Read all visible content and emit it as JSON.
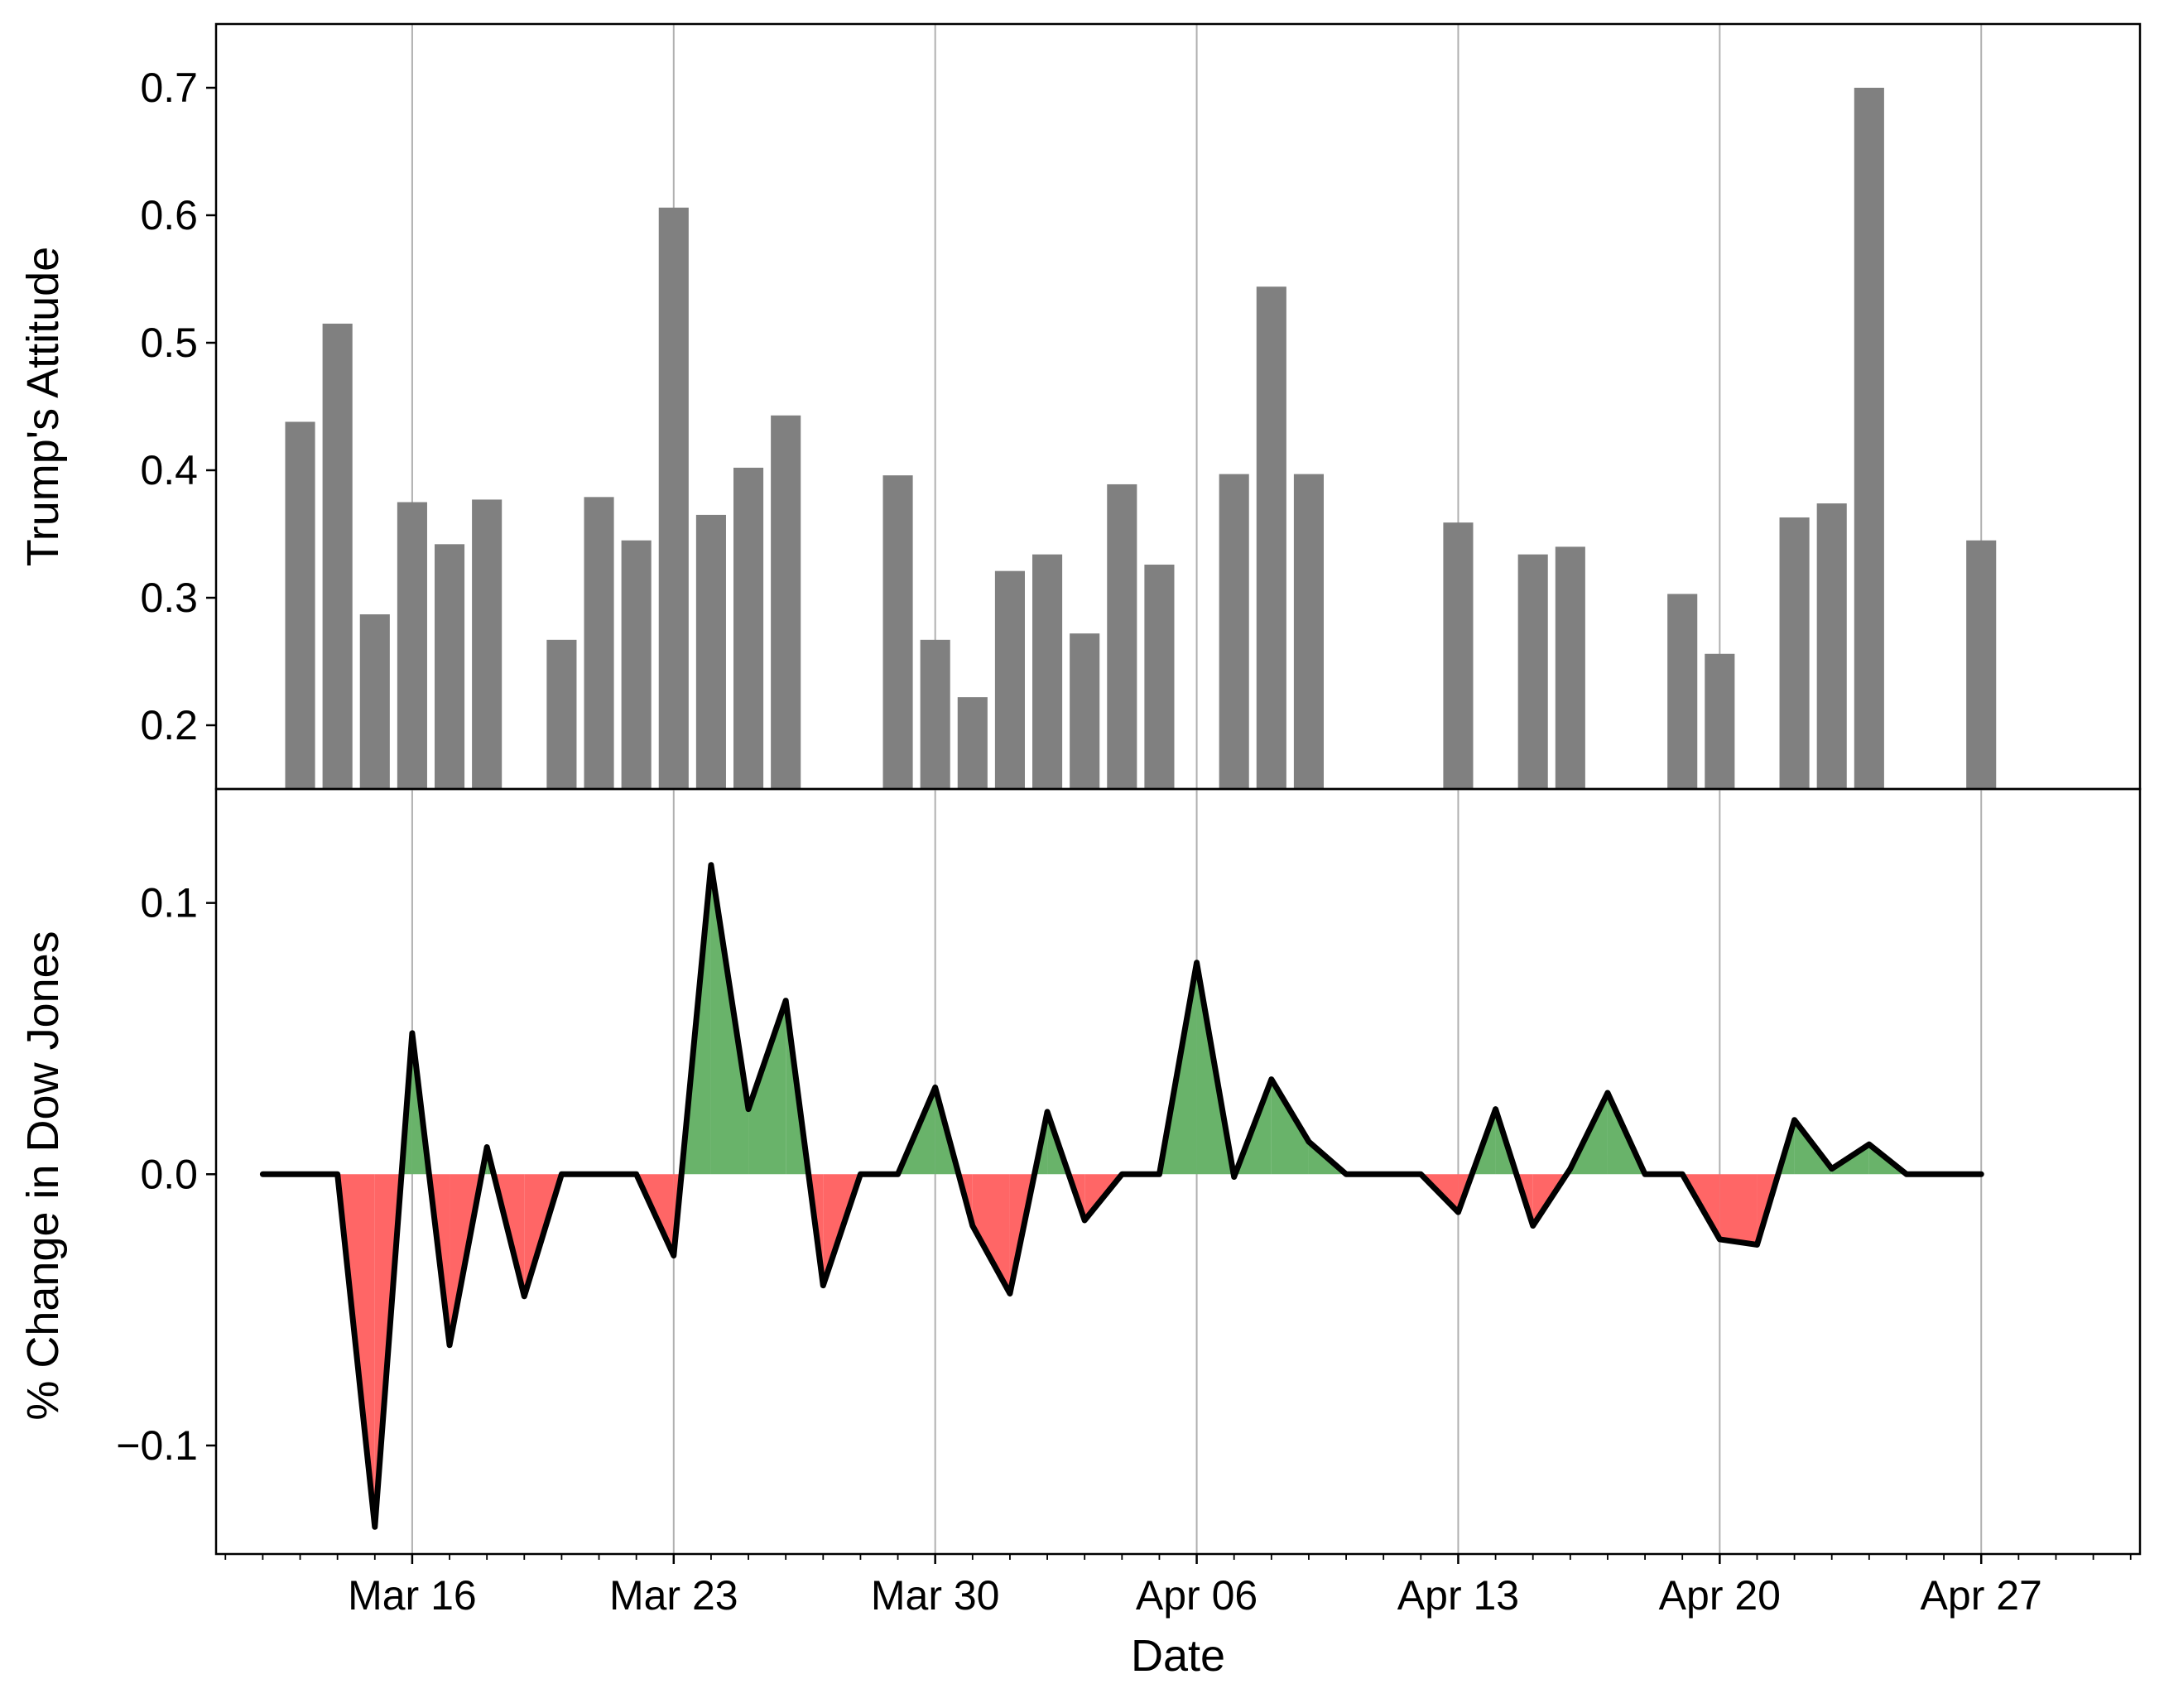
{
  "chart_data": [
    {
      "type": "bar",
      "ylabel": "Trump's Attitude",
      "xlabel": "",
      "ylim": [
        0.15,
        0.75
      ],
      "yticks": [
        0.2,
        0.3,
        0.4,
        0.5,
        0.6,
        0.7
      ],
      "grid": "vertical lines at major x ticks",
      "bar_color": "#808080",
      "x": [
        "2020-03-13",
        "2020-03-14",
        "2020-03-15",
        "2020-03-16",
        "2020-03-17",
        "2020-03-18",
        "2020-03-19",
        "2020-03-20",
        "2020-03-21",
        "2020-03-22",
        "2020-03-23",
        "2020-03-24",
        "2020-03-25",
        "2020-03-26",
        "2020-03-27",
        "2020-03-28",
        "2020-03-29",
        "2020-03-30",
        "2020-03-31",
        "2020-04-01",
        "2020-04-02",
        "2020-04-03",
        "2020-04-04",
        "2020-04-05",
        "2020-04-06",
        "2020-04-07",
        "2020-04-08",
        "2020-04-09",
        "2020-04-10",
        "2020-04-11",
        "2020-04-12",
        "2020-04-13",
        "2020-04-14",
        "2020-04-15",
        "2020-04-16",
        "2020-04-17",
        "2020-04-18",
        "2020-04-19",
        "2020-04-20",
        "2020-04-21",
        "2020-04-22",
        "2020-04-23",
        "2020-04-24",
        "2020-04-25",
        "2020-04-26",
        "2020-04-27"
      ],
      "values": [
        0.438,
        0.515,
        0.287,
        0.375,
        0.342,
        0.377,
        null,
        0.267,
        0.379,
        0.345,
        0.606,
        0.365,
        0.402,
        0.443,
        null,
        null,
        0.396,
        0.267,
        0.222,
        0.321,
        0.334,
        0.272,
        0.389,
        0.326,
        null,
        0.397,
        0.544,
        0.397,
        null,
        null,
        null,
        0.359,
        null,
        0.334,
        0.34,
        null,
        null,
        0.303,
        0.256,
        null,
        0.363,
        0.374,
        0.7,
        null,
        null,
        0.345
      ]
    },
    {
      "type": "area",
      "xlabel": "Date",
      "ylabel": "% Change in Dow Jones",
      "ylim": [
        -0.14,
        0.142
      ],
      "yticks": [
        -0.1,
        0.0,
        0.1
      ],
      "ytick_labels": [
        "−0.1",
        "0.0",
        "0.1"
      ],
      "xticks": [
        "Mar 16",
        "Mar 23",
        "Mar 30",
        "Apr 06",
        "Apr 13",
        "Apr 20",
        "Apr 27"
      ],
      "xtick_dates": [
        "2020-03-16",
        "2020-03-23",
        "2020-03-30",
        "2020-04-06",
        "2020-04-13",
        "2020-04-20",
        "2020-04-27"
      ],
      "xlim": [
        "2020-03-10T18:00",
        "2020-05-01T06:00"
      ],
      "grid": "vertical lines at major x ticks",
      "line_color": "#000000",
      "positive_fill": "#69b36a",
      "negative_fill": "#ff6666",
      "x": [
        "2020-03-12",
        "2020-03-13",
        "2020-03-14",
        "2020-03-15",
        "2020-03-16",
        "2020-03-17",
        "2020-03-18",
        "2020-03-19",
        "2020-03-20",
        "2020-03-21",
        "2020-03-22",
        "2020-03-23",
        "2020-03-24",
        "2020-03-25",
        "2020-03-26",
        "2020-03-27",
        "2020-03-28",
        "2020-03-29",
        "2020-03-30",
        "2020-03-31",
        "2020-04-01",
        "2020-04-02",
        "2020-04-03",
        "2020-04-04",
        "2020-04-05",
        "2020-04-06",
        "2020-04-07",
        "2020-04-08",
        "2020-04-09",
        "2020-04-10",
        "2020-04-11",
        "2020-04-12",
        "2020-04-13",
        "2020-04-14",
        "2020-04-15",
        "2020-04-16",
        "2020-04-17",
        "2020-04-18",
        "2020-04-19",
        "2020-04-20",
        "2020-04-21",
        "2020-04-22",
        "2020-04-23",
        "2020-04-24",
        "2020-04-25",
        "2020-04-26",
        "2020-04-27"
      ],
      "values": [
        0.0,
        0.0,
        0.0,
        -0.13,
        0.052,
        -0.063,
        0.01,
        -0.045,
        0.0,
        0.0,
        0.0,
        -0.03,
        0.114,
        0.024,
        0.064,
        -0.041,
        0.0,
        0.0,
        0.032,
        -0.019,
        -0.044,
        0.023,
        -0.017,
        0.0,
        0.0,
        0.078,
        -0.001,
        0.035,
        0.012,
        0.0,
        0.0,
        0.0,
        -0.014,
        0.024,
        -0.019,
        0.002,
        0.03,
        0.0,
        0.0,
        -0.024,
        -0.026,
        0.02,
        0.002,
        0.011,
        0.0,
        0.0,
        0.0
      ]
    }
  ]
}
